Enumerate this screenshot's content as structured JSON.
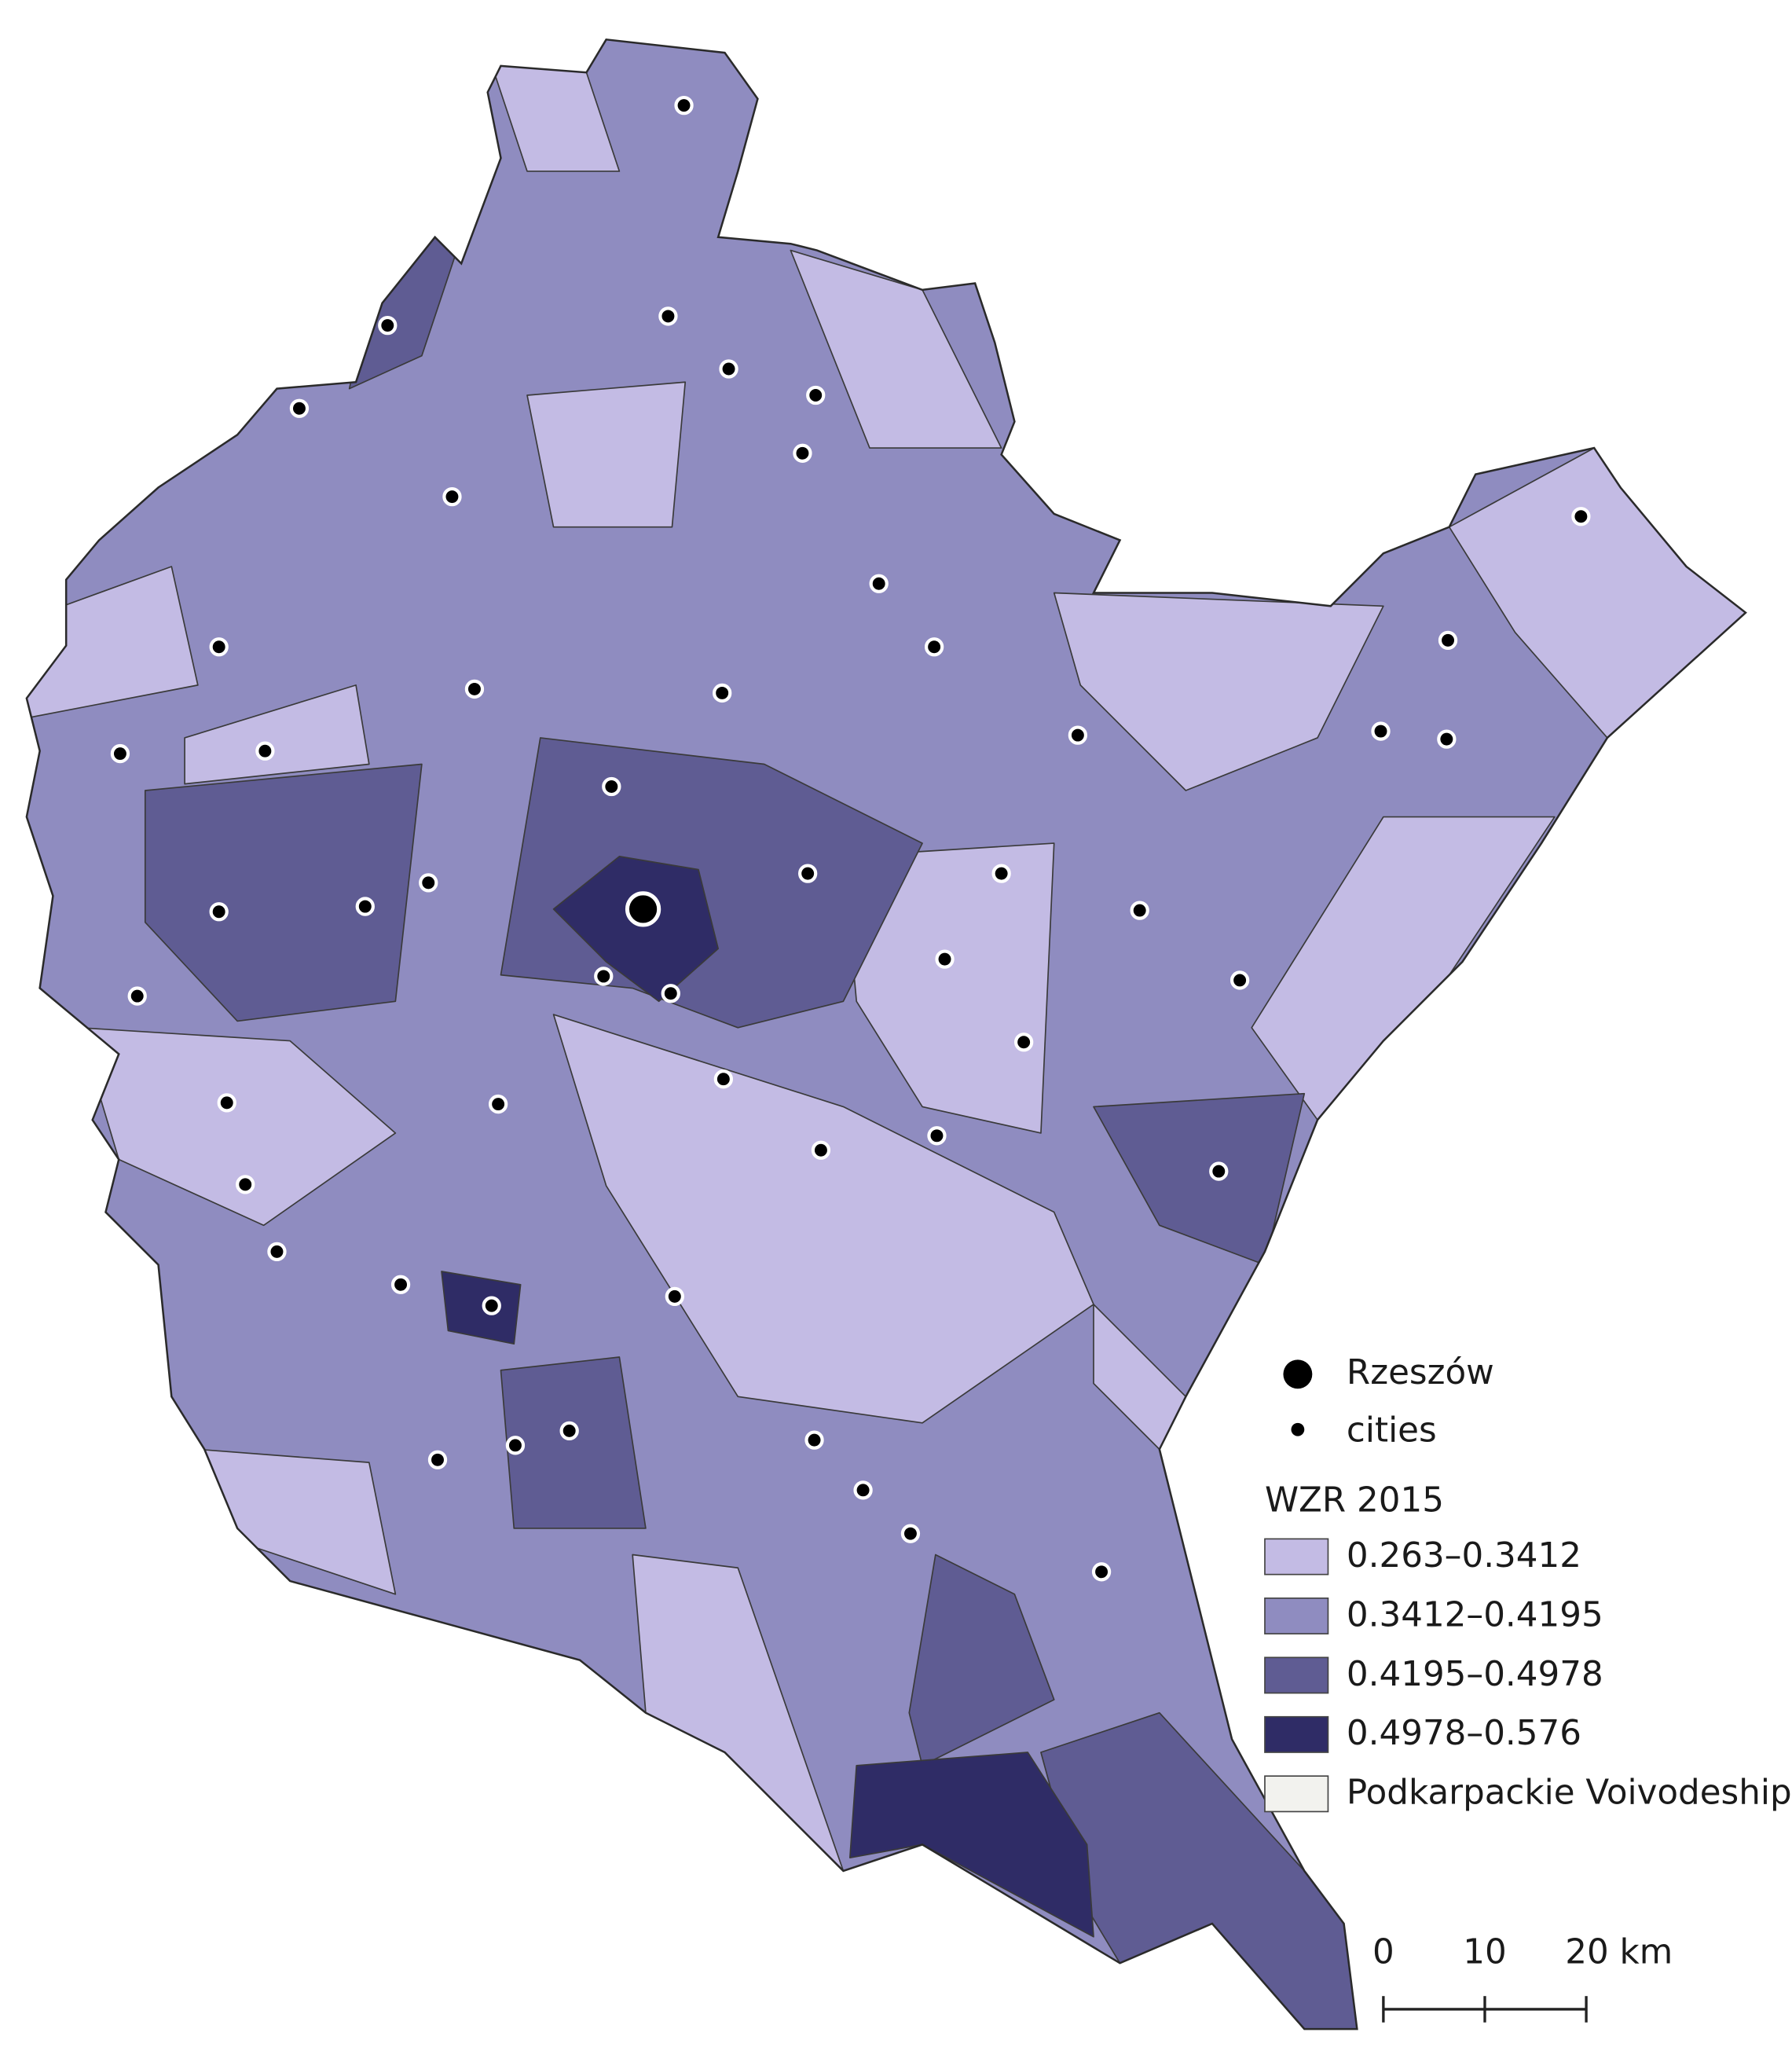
{
  "legend": {
    "capital": "Rzeszów",
    "cities": "cities",
    "title": "WZR 2015",
    "classes": [
      {
        "label": "0.263–0.3412",
        "color": "#c3bbe4"
      },
      {
        "label": "0.3412–0.4195",
        "color": "#8f8cc0"
      },
      {
        "label": "0.4195–0.4978",
        "color": "#5f5c93"
      },
      {
        "label": "0.4978–0.576",
        "color": "#2f2c66"
      }
    ],
    "boundary": {
      "label": "Podkarpackie Voivodeship",
      "color": "#f2f2ee"
    }
  },
  "scale_bar": {
    "labels": [
      "0",
      "10",
      "20 km"
    ]
  }
}
